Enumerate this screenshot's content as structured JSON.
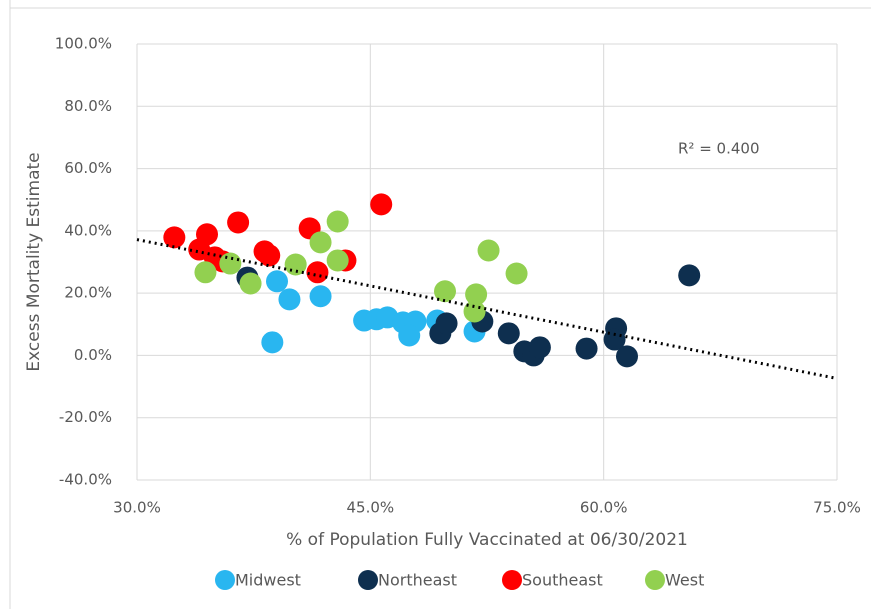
{
  "chart_data": {
    "type": "scatter",
    "x_label": "% of Population Fully Vaccinated at 06/30/2021",
    "y_label": "Excess Mortality Estimate",
    "xlim": [
      30,
      75
    ],
    "ylim": [
      -40,
      100
    ],
    "xticks": [
      {
        "value": 30,
        "label": "30.0%"
      },
      {
        "value": 45,
        "label": "45.0%"
      },
      {
        "value": 60,
        "label": "60.0%"
      },
      {
        "value": 75,
        "label": "75.0%"
      }
    ],
    "yticks": [
      {
        "value": -40,
        "label": "-40.0%"
      },
      {
        "value": -20,
        "label": "-20.0%"
      },
      {
        "value": 0,
        "label": "0.0%"
      },
      {
        "value": 20,
        "label": "20.0%"
      },
      {
        "value": 40,
        "label": "40.0%"
      },
      {
        "value": 60,
        "label": "60.0%"
      },
      {
        "value": 80,
        "label": "80.0%"
      },
      {
        "value": 100,
        "label": "100.0%"
      }
    ],
    "grid": true,
    "legend": "bottom",
    "series": [
      {
        "name": "Midwest",
        "color": "#29b6f0",
        "x": [
          39.0,
          39.8,
          38.7,
          41.8,
          44.6,
          45.4,
          46.1,
          47.1,
          47.9,
          47.5,
          49.3,
          51.7
        ],
        "values": [
          23.8,
          18.0,
          4.2,
          19.0,
          11.2,
          11.6,
          12.2,
          10.6,
          10.9,
          6.4,
          11.2,
          7.7
        ]
      },
      {
        "name": "Northeast",
        "color": "#0e2f4f",
        "x": [
          37.1,
          49.5,
          49.9,
          52.2,
          53.9,
          54.9,
          55.5,
          55.9,
          58.9,
          60.8,
          60.7,
          61.5,
          65.5
        ],
        "values": [
          25.0,
          7.1,
          10.3,
          10.9,
          7.1,
          1.3,
          0.0,
          2.6,
          2.2,
          8.7,
          5.1,
          -0.3,
          25.7
        ]
      },
      {
        "name": "Southeast",
        "color": "#ff0000",
        "x": [
          32.4,
          34.0,
          34.5,
          35.0,
          35.5,
          36.5,
          38.2,
          38.5,
          41.1,
          41.6,
          43.4,
          45.7
        ],
        "values": [
          37.9,
          34.0,
          38.9,
          31.5,
          30.2,
          42.7,
          33.4,
          32.1,
          40.8,
          26.7,
          30.5,
          48.5
        ]
      },
      {
        "name": "West",
        "color": "#92d050",
        "x": [
          34.4,
          36.0,
          37.3,
          40.2,
          41.8,
          42.9,
          42.9,
          49.8,
          51.8,
          51.7,
          52.6,
          54.4
        ],
        "values": [
          26.7,
          29.5,
          23.1,
          29.2,
          36.3,
          43.0,
          30.5,
          20.6,
          19.6,
          14.1,
          33.7,
          26.3
        ]
      }
    ],
    "trendline": {
      "x": [
        30,
        75
      ],
      "values": [
        37.2,
        -7.4
      ],
      "label": "R² = 0.400"
    }
  }
}
